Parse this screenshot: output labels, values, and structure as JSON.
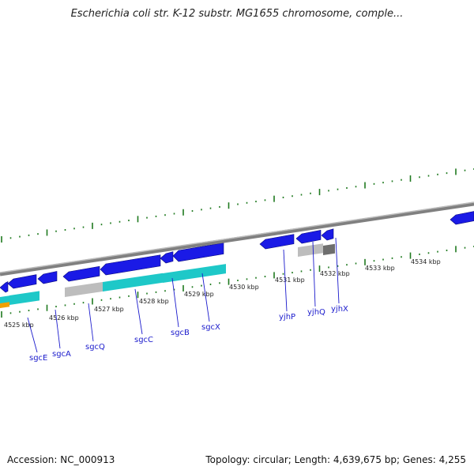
{
  "title": "Escherichia coli str. K-12 substr. MG1655 chromosome, comple...",
  "accession": "Accession: NC_000913",
  "topology_info": "Topology: circular; Length: 4,639,675 bp; Genes: 4,255",
  "colors": {
    "gene_arrow": "#1a1ae6",
    "cds_cyan": "#1ec8c8",
    "cds_grey": "#bdbdbd",
    "cds_dark": "#6e6e6e",
    "cds_orange": "#f0a000",
    "tick": "#1f7a1f",
    "backbone": "#808080",
    "label": "#1a1acc"
  },
  "kbp_labels": [
    "4525 kbp",
    "4526 kbp",
    "4527 kbp",
    "4528 kbp",
    "4529 kbp",
    "4530 kbp",
    "4531 kbp",
    "4532 kbp",
    "4533 kbp",
    "4534 kbp"
  ],
  "gene_labels": [
    "sgcE",
    "sgcA",
    "sgcQ",
    "sgcC",
    "sgcB",
    "sgcX",
    "yjhP",
    "yjhQ",
    "yjhX"
  ]
}
